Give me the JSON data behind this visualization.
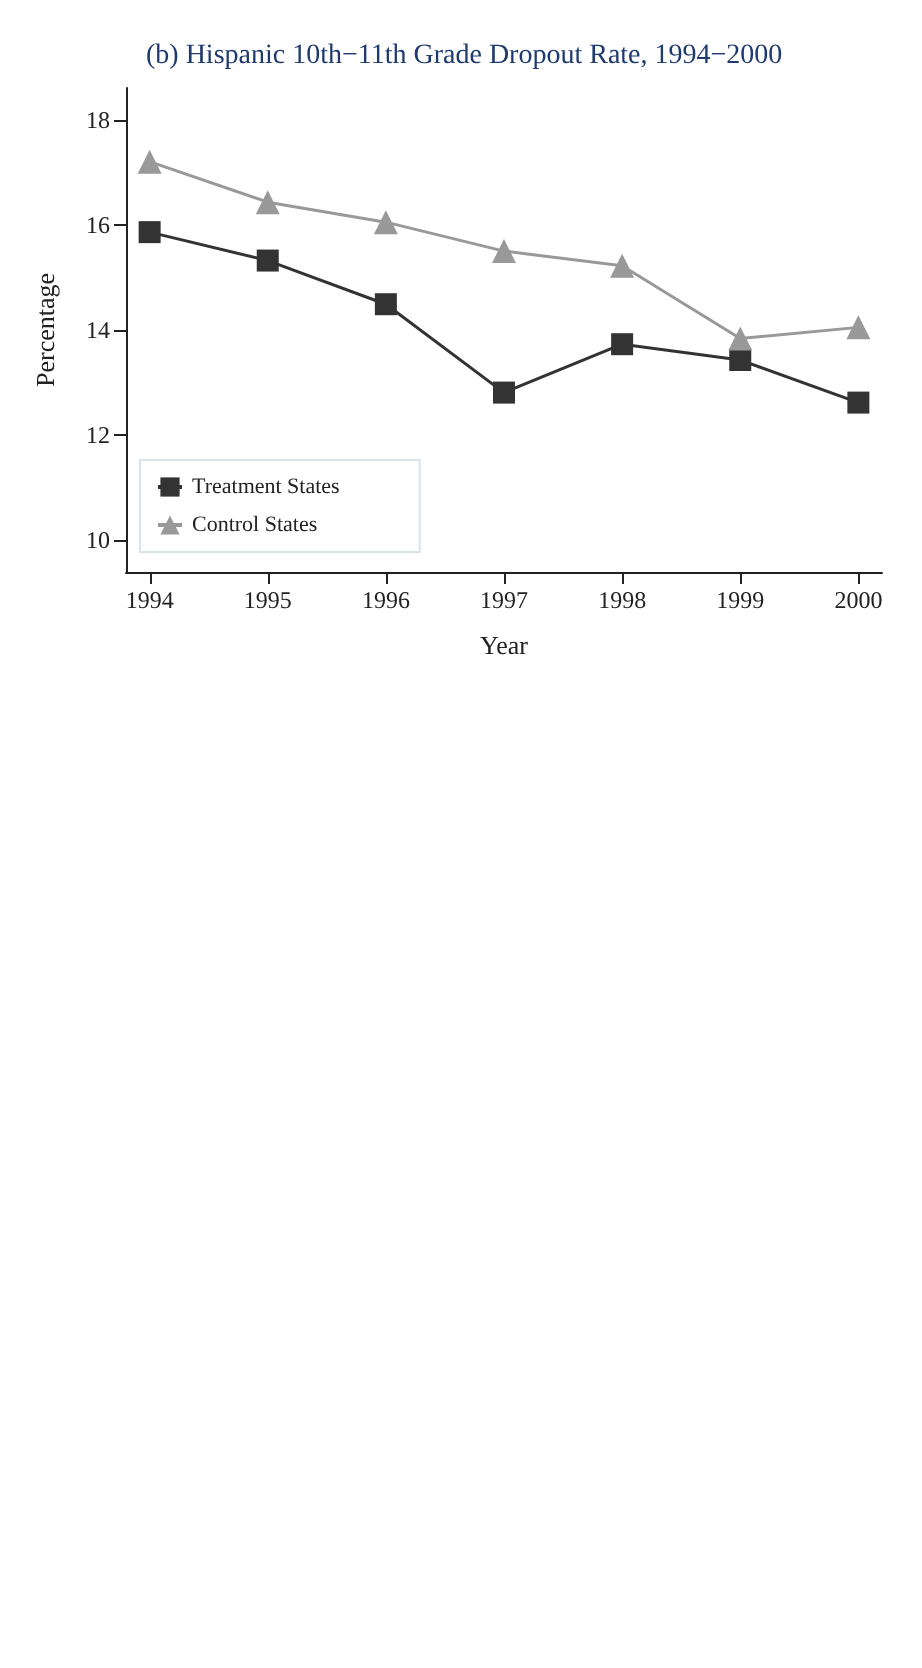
{
  "chart_data": {
    "type": "line",
    "title": "(b) Hispanic 10th−11th Grade Dropout Rate, 1994−2000",
    "xlabel": "Year",
    "ylabel": "Percentage",
    "x": [
      1994,
      1995,
      1996,
      1997,
      1998,
      1999,
      2000
    ],
    "series": [
      {
        "name": "Treatment States",
        "color": "#333333",
        "marker": "square",
        "values": [
          15.86,
          15.32,
          14.49,
          12.81,
          13.73,
          13.43,
          12.62
        ]
      },
      {
        "name": "Control States",
        "color": "#999999",
        "marker": "triangle",
        "values": [
          17.2,
          16.43,
          16.05,
          15.5,
          15.22,
          13.84,
          14.05
        ]
      }
    ],
    "xlim": [
      1993.8,
      2000.2
    ],
    "xticks": [
      1994,
      1995,
      1996,
      1997,
      1998,
      1999,
      2000
    ],
    "ylim": [
      9.4,
      18.6
    ],
    "yticks": [
      10,
      12,
      14,
      16,
      18
    ],
    "legend": "bottom left",
    "line_style": "solid"
  }
}
